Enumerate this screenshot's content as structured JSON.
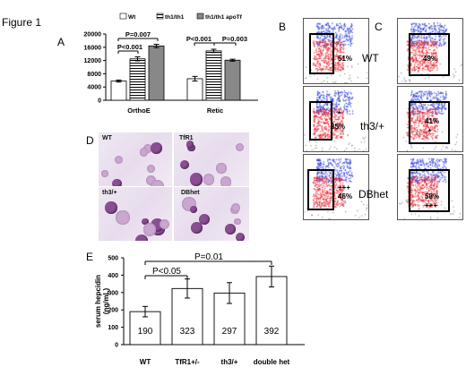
{
  "figure_title": "Figure 1",
  "panels": {
    "A": "A",
    "B": "B",
    "C": "C",
    "D": "D",
    "E": "E"
  },
  "chart_data": [
    {
      "type": "bar",
      "panel": "A",
      "categories": [
        "OrthoE",
        "Retic"
      ],
      "series": [
        {
          "name": "Wt",
          "values": [
            5800,
            6500
          ],
          "errors": [
            300,
            700
          ],
          "pattern": "white"
        },
        {
          "name": "th1/th1",
          "values": [
            12500,
            14900
          ],
          "errors": [
            600,
            500
          ],
          "pattern": "horizontal-stripes"
        },
        {
          "name": "th1/th1 apoTf",
          "values": [
            16400,
            12100
          ],
          "errors": [
            500,
            300
          ],
          "pattern": "gray"
        }
      ],
      "ylim": [
        0,
        20000
      ],
      "yticks": [
        "0",
        "4000",
        "8000",
        "12000",
        "16000",
        "20000"
      ],
      "legend": "top",
      "annotations": [
        "P=0.007",
        "P<0.001",
        "P<0.001",
        "P=0.003"
      ]
    },
    {
      "type": "bar",
      "panel": "E",
      "categories": [
        "WT",
        "TfR1+/-",
        "th3/+",
        "double het"
      ],
      "values": [
        190,
        323,
        297,
        392
      ],
      "value_labels": [
        "190",
        "323",
        "297",
        "392"
      ],
      "errors": [
        30,
        55,
        60,
        60
      ],
      "ylabel": "serum hepcidin (ng/mL)",
      "ylim": [
        0,
        500
      ],
      "yticks": [
        "0",
        "100",
        "200",
        "300",
        "400",
        "500"
      ],
      "annotations": [
        "P=0.01",
        "P<0.05"
      ]
    }
  ],
  "flow_B": [
    {
      "pct": "51%",
      "mark": ""
    },
    {
      "pct": "35%",
      "mark": "*"
    },
    {
      "pct": "46%",
      "mark": "+++"
    }
  ],
  "flow_C": [
    {
      "label": "WT",
      "pct": "49%",
      "mark": ""
    },
    {
      "label": "th3/+",
      "pct": "41%",
      "mark": "*"
    },
    {
      "label": "DBhet",
      "pct": "58%",
      "mark": "+++"
    }
  ],
  "micro_labels": [
    "WT",
    "TfR1",
    "th3/+",
    "DBhet"
  ],
  "colors": {
    "red": "#e8202a",
    "blue": "#2a3bd6",
    "gray_bar": "#888888",
    "stain": "#8a4f93"
  }
}
